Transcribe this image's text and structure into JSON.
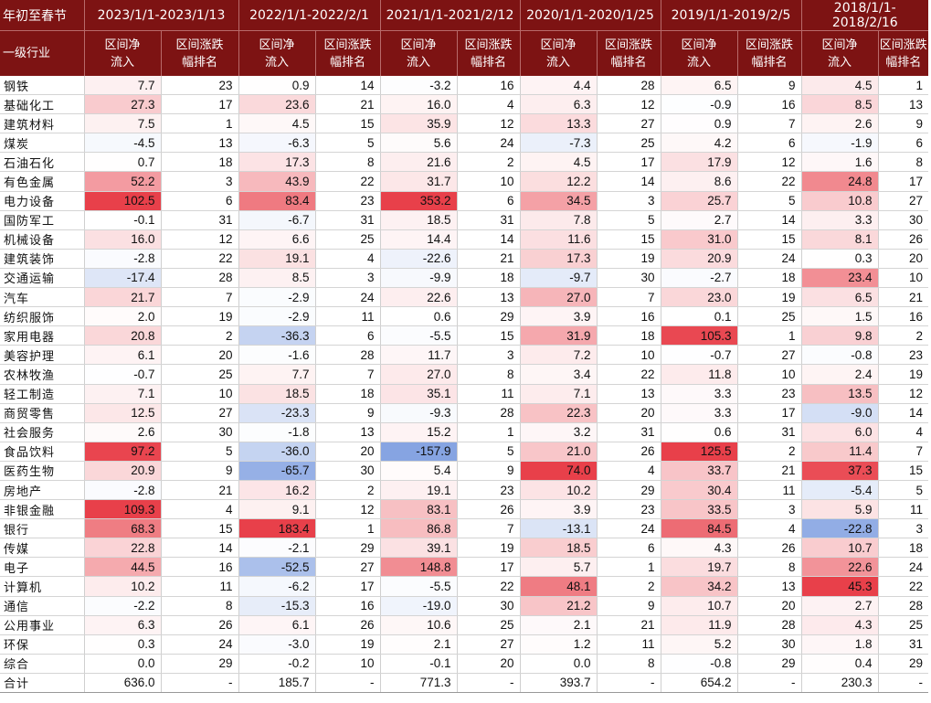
{
  "table": {
    "corner_top": "年初至春节",
    "corner_bottom": "一级行业",
    "periods": [
      "2023/1/1-2023/1/13",
      "2022/1/1-2022/2/1",
      "2021/1/1-2021/2/12",
      "2020/1/1-2020/1/25",
      "2019/1/1-2019/2/5",
      "2018/1/1-2018/2/16"
    ],
    "sub_headers": {
      "flow": "区间净\n流入",
      "rank": "区间涨跌\n幅排名"
    },
    "colors": {
      "header_bg": "#7d1313",
      "positive": "#e8404a",
      "negative": "#3f6fd1"
    },
    "rows": [
      {
        "industry": "钢铁",
        "values": [
          [
            "7.7",
            "23"
          ],
          [
            "0.9",
            "14"
          ],
          [
            "-3.2",
            "16"
          ],
          [
            "4.4",
            "28"
          ],
          [
            "6.5",
            "9"
          ],
          [
            "4.5",
            "1"
          ]
        ]
      },
      {
        "industry": "基础化工",
        "values": [
          [
            "27.3",
            "17"
          ],
          [
            "23.6",
            "21"
          ],
          [
            "16.0",
            "4"
          ],
          [
            "6.3",
            "12"
          ],
          [
            "-0.9",
            "16"
          ],
          [
            "8.5",
            "13"
          ]
        ]
      },
      {
        "industry": "建筑材料",
        "values": [
          [
            "7.5",
            "1"
          ],
          [
            "4.5",
            "15"
          ],
          [
            "35.9",
            "12"
          ],
          [
            "13.3",
            "27"
          ],
          [
            "0.9",
            "7"
          ],
          [
            "2.6",
            "9"
          ]
        ]
      },
      {
        "industry": "煤炭",
        "values": [
          [
            "-4.5",
            "13"
          ],
          [
            "-6.3",
            "5"
          ],
          [
            "5.6",
            "24"
          ],
          [
            "-7.3",
            "25"
          ],
          [
            "4.2",
            "6"
          ],
          [
            "-1.9",
            "6"
          ]
        ]
      },
      {
        "industry": "石油石化",
        "values": [
          [
            "0.7",
            "18"
          ],
          [
            "17.3",
            "8"
          ],
          [
            "21.6",
            "2"
          ],
          [
            "4.5",
            "17"
          ],
          [
            "17.9",
            "12"
          ],
          [
            "1.6",
            "8"
          ]
        ]
      },
      {
        "industry": "有色金属",
        "values": [
          [
            "52.2",
            "3"
          ],
          [
            "43.9",
            "22"
          ],
          [
            "31.7",
            "10"
          ],
          [
            "12.2",
            "14"
          ],
          [
            "8.6",
            "22"
          ],
          [
            "24.8",
            "17"
          ]
        ]
      },
      {
        "industry": "电力设备",
        "values": [
          [
            "102.5",
            "6"
          ],
          [
            "83.4",
            "23"
          ],
          [
            "353.2",
            "6"
          ],
          [
            "34.5",
            "3"
          ],
          [
            "25.7",
            "5"
          ],
          [
            "10.8",
            "27"
          ]
        ]
      },
      {
        "industry": "国防军工",
        "values": [
          [
            "-0.1",
            "31"
          ],
          [
            "-6.7",
            "31"
          ],
          [
            "18.5",
            "31"
          ],
          [
            "7.8",
            "5"
          ],
          [
            "2.7",
            "14"
          ],
          [
            "3.3",
            "30"
          ]
        ]
      },
      {
        "industry": "机械设备",
        "values": [
          [
            "16.0",
            "12"
          ],
          [
            "6.6",
            "25"
          ],
          [
            "14.4",
            "14"
          ],
          [
            "11.6",
            "15"
          ],
          [
            "31.0",
            "15"
          ],
          [
            "8.1",
            "26"
          ]
        ]
      },
      {
        "industry": "建筑装饰",
        "values": [
          [
            "-2.8",
            "22"
          ],
          [
            "19.1",
            "4"
          ],
          [
            "-22.6",
            "21"
          ],
          [
            "17.3",
            "19"
          ],
          [
            "20.9",
            "24"
          ],
          [
            "0.3",
            "20"
          ]
        ]
      },
      {
        "industry": "交通运输",
        "values": [
          [
            "-17.4",
            "28"
          ],
          [
            "8.5",
            "3"
          ],
          [
            "-9.9",
            "18"
          ],
          [
            "-9.7",
            "30"
          ],
          [
            "-2.7",
            "18"
          ],
          [
            "23.4",
            "10"
          ]
        ]
      },
      {
        "industry": "汽车",
        "values": [
          [
            "21.7",
            "7"
          ],
          [
            "-2.9",
            "24"
          ],
          [
            "22.6",
            "13"
          ],
          [
            "27.0",
            "7"
          ],
          [
            "23.0",
            "19"
          ],
          [
            "6.5",
            "21"
          ]
        ]
      },
      {
        "industry": "纺织服饰",
        "values": [
          [
            "2.0",
            "19"
          ],
          [
            "-2.9",
            "11"
          ],
          [
            "0.6",
            "29"
          ],
          [
            "3.9",
            "16"
          ],
          [
            "0.1",
            "25"
          ],
          [
            "1.5",
            "16"
          ]
        ]
      },
      {
        "industry": "家用电器",
        "values": [
          [
            "20.8",
            "2"
          ],
          [
            "-36.3",
            "6"
          ],
          [
            "-5.5",
            "15"
          ],
          [
            "31.9",
            "18"
          ],
          [
            "105.3",
            "1"
          ],
          [
            "9.8",
            "2"
          ]
        ]
      },
      {
        "industry": "美容护理",
        "values": [
          [
            "6.1",
            "20"
          ],
          [
            "-1.6",
            "28"
          ],
          [
            "11.7",
            "3"
          ],
          [
            "7.2",
            "10"
          ],
          [
            "-0.7",
            "27"
          ],
          [
            "-0.8",
            "23"
          ]
        ]
      },
      {
        "industry": "农林牧渔",
        "values": [
          [
            "-0.7",
            "25"
          ],
          [
            "7.7",
            "7"
          ],
          [
            "27.0",
            "8"
          ],
          [
            "3.4",
            "22"
          ],
          [
            "11.8",
            "10"
          ],
          [
            "2.4",
            "19"
          ]
        ]
      },
      {
        "industry": "轻工制造",
        "values": [
          [
            "7.1",
            "10"
          ],
          [
            "18.5",
            "18"
          ],
          [
            "35.1",
            "11"
          ],
          [
            "7.1",
            "13"
          ],
          [
            "3.3",
            "23"
          ],
          [
            "13.5",
            "12"
          ]
        ]
      },
      {
        "industry": "商贸零售",
        "values": [
          [
            "12.5",
            "27"
          ],
          [
            "-23.3",
            "9"
          ],
          [
            "-9.3",
            "28"
          ],
          [
            "22.3",
            "20"
          ],
          [
            "3.3",
            "17"
          ],
          [
            "-9.0",
            "14"
          ]
        ]
      },
      {
        "industry": "社会服务",
        "values": [
          [
            "2.6",
            "30"
          ],
          [
            "-1.8",
            "13"
          ],
          [
            "15.2",
            "1"
          ],
          [
            "3.2",
            "31"
          ],
          [
            "0.6",
            "31"
          ],
          [
            "6.0",
            "4"
          ]
        ]
      },
      {
        "industry": "食品饮料",
        "values": [
          [
            "97.2",
            "5"
          ],
          [
            "-36.0",
            "20"
          ],
          [
            "-157.9",
            "5"
          ],
          [
            "21.0",
            "26"
          ],
          [
            "125.5",
            "2"
          ],
          [
            "11.4",
            "7"
          ]
        ]
      },
      {
        "industry": "医药生物",
        "values": [
          [
            "20.9",
            "9"
          ],
          [
            "-65.7",
            "30"
          ],
          [
            "5.4",
            "9"
          ],
          [
            "74.0",
            "4"
          ],
          [
            "33.7",
            "21"
          ],
          [
            "37.3",
            "15"
          ]
        ]
      },
      {
        "industry": "房地产",
        "values": [
          [
            "-2.8",
            "21"
          ],
          [
            "16.2",
            "2"
          ],
          [
            "19.1",
            "23"
          ],
          [
            "10.2",
            "29"
          ],
          [
            "30.4",
            "11"
          ],
          [
            "-5.4",
            "5"
          ]
        ]
      },
      {
        "industry": "非银金融",
        "values": [
          [
            "109.3",
            "4"
          ],
          [
            "9.1",
            "12"
          ],
          [
            "83.1",
            "26"
          ],
          [
            "3.9",
            "23"
          ],
          [
            "33.5",
            "3"
          ],
          [
            "5.9",
            "11"
          ]
        ]
      },
      {
        "industry": "银行",
        "values": [
          [
            "68.3",
            "15"
          ],
          [
            "183.4",
            "1"
          ],
          [
            "86.8",
            "7"
          ],
          [
            "-13.1",
            "24"
          ],
          [
            "84.5",
            "4"
          ],
          [
            "-22.8",
            "3"
          ]
        ]
      },
      {
        "industry": "传媒",
        "values": [
          [
            "22.8",
            "14"
          ],
          [
            "-2.1",
            "29"
          ],
          [
            "39.1",
            "19"
          ],
          [
            "18.5",
            "6"
          ],
          [
            "4.3",
            "26"
          ],
          [
            "10.7",
            "18"
          ]
        ]
      },
      {
        "industry": "电子",
        "values": [
          [
            "44.5",
            "16"
          ],
          [
            "-52.5",
            "27"
          ],
          [
            "148.8",
            "17"
          ],
          [
            "5.7",
            "1"
          ],
          [
            "19.7",
            "8"
          ],
          [
            "22.6",
            "24"
          ]
        ]
      },
      {
        "industry": "计算机",
        "values": [
          [
            "10.2",
            "11"
          ],
          [
            "-6.2",
            "17"
          ],
          [
            "-5.5",
            "22"
          ],
          [
            "48.1",
            "2"
          ],
          [
            "34.2",
            "13"
          ],
          [
            "45.3",
            "22"
          ]
        ]
      },
      {
        "industry": "通信",
        "values": [
          [
            "-2.2",
            "8"
          ],
          [
            "-15.3",
            "16"
          ],
          [
            "-19.0",
            "30"
          ],
          [
            "21.2",
            "9"
          ],
          [
            "10.7",
            "20"
          ],
          [
            "2.7",
            "28"
          ]
        ]
      },
      {
        "industry": "公用事业",
        "values": [
          [
            "6.3",
            "26"
          ],
          [
            "6.1",
            "26"
          ],
          [
            "10.6",
            "25"
          ],
          [
            "2.1",
            "21"
          ],
          [
            "11.9",
            "28"
          ],
          [
            "4.3",
            "25"
          ]
        ]
      },
      {
        "industry": "环保",
        "values": [
          [
            "0.3",
            "24"
          ],
          [
            "-3.0",
            "19"
          ],
          [
            "2.1",
            "27"
          ],
          [
            "1.2",
            "11"
          ],
          [
            "5.2",
            "30"
          ],
          [
            "1.8",
            "31"
          ]
        ]
      },
      {
        "industry": "综合",
        "values": [
          [
            "0.0",
            "29"
          ],
          [
            "-0.2",
            "10"
          ],
          [
            "-0.1",
            "20"
          ],
          [
            "0.0",
            "8"
          ],
          [
            "-0.8",
            "29"
          ],
          [
            "0.4",
            "29"
          ]
        ]
      }
    ],
    "total": {
      "label": "合计",
      "values": [
        [
          "636.0",
          "-"
        ],
        [
          "185.7",
          "-"
        ],
        [
          "771.3",
          "-"
        ],
        [
          "393.7",
          "-"
        ],
        [
          "654.2",
          "-"
        ],
        [
          "230.3",
          "-"
        ]
      ]
    }
  }
}
